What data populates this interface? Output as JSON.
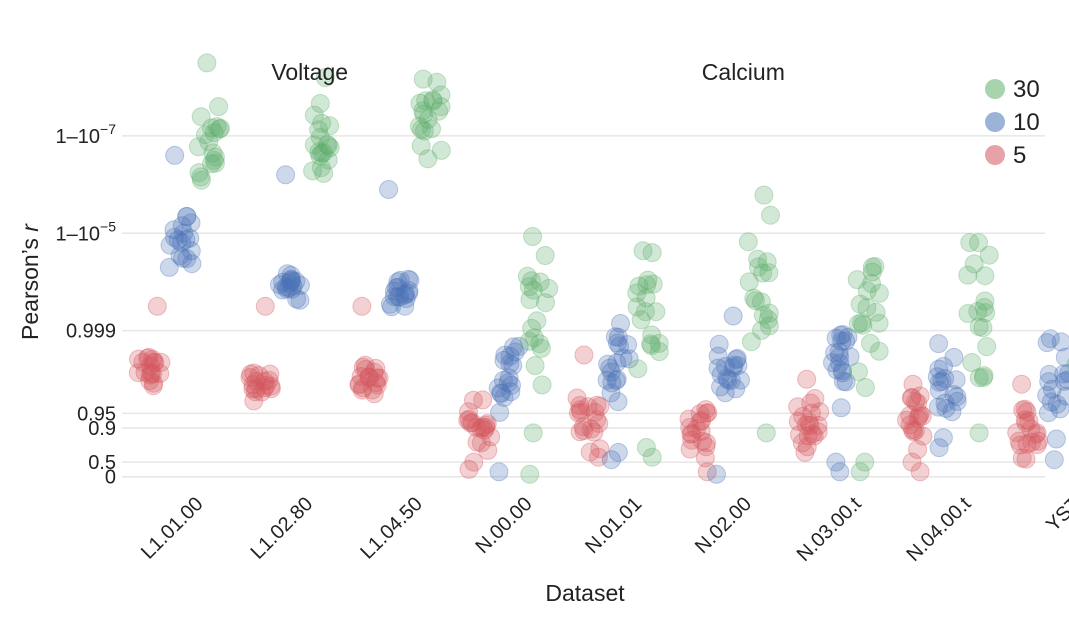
{
  "chart_data": {
    "type": "scatter",
    "subtype": "jittered strip plot",
    "xlabel": "Dataset",
    "ylabel": "Pearson's r",
    "ylabel_prefix": "Pearson’s ",
    "ylabel_italic": "r",
    "y_scale": "transformed (log of 1 - r)",
    "y_ticks": [
      {
        "label_base": "0",
        "label_sup": ""
      },
      {
        "label_base": "0.5",
        "label_sup": ""
      },
      {
        "label_base": "0.9",
        "label_sup": ""
      },
      {
        "label_base": "0.95",
        "label_sup": ""
      },
      {
        "label_base": "0.999",
        "label_sup": ""
      },
      {
        "label_base": "1–10",
        "label_sup": "−5"
      },
      {
        "label_base": "1–10",
        "label_sup": "−7"
      }
    ],
    "y_tick_positions_units": [
      0,
      0.3,
      1.0,
      1.3,
      3.0,
      5.0,
      7.0
    ],
    "ylim_units": [
      -0.15,
      8.6
    ],
    "groups": [
      {
        "label": "Voltage",
        "from": "L1.01.00",
        "to": "L1.04.50"
      },
      {
        "label": "Calcium",
        "from": "N.00.00",
        "to": "YST"
      }
    ],
    "legend": {
      "title": "",
      "position": "top-right",
      "entries": [
        {
          "label": "30",
          "color": "#5fae6a"
        },
        {
          "label": "10",
          "color": "#4b74b8"
        },
        {
          "label": "5",
          "color": "#d4555e"
        }
      ]
    },
    "categories": [
      "L1.01.00",
      "L1.02.80",
      "L1.04.50",
      "N.00.00",
      "N.01.01",
      "N.02.00",
      "N.03.00.t",
      "N.04.00.t",
      "YST"
    ],
    "series": [
      {
        "name": "5",
        "color": "#d4555e",
        "points_per_category": 18,
        "center_units": [
          2.2,
          1.9,
          1.95,
          1.0,
          1.25,
          1.0,
          0.95,
          1.1,
          1.05
        ],
        "spread_units": [
          0.45,
          0.35,
          0.4,
          0.55,
          0.7,
          0.65,
          0.7,
          0.7,
          0.7
        ],
        "outliers_units": [
          [
            3.5
          ],
          [
            3.5
          ],
          [
            3.5
          ],
          [
            0.15,
            0.3
          ],
          [
            2.5,
            0.4
          ],
          [
            0.1
          ],
          [
            2.0,
            0.5
          ],
          [
            1.9,
            0.1
          ],
          [
            1.9
          ]
        ]
      },
      {
        "name": "10",
        "color": "#4b74b8",
        "points_per_category": 18,
        "center_units": [
          4.9,
          3.9,
          3.8,
          2.1,
          2.4,
          2.2,
          2.3,
          1.9,
          1.9
        ],
        "spread_units": [
          0.6,
          0.4,
          0.4,
          0.8,
          0.9,
          1.0,
          1.0,
          1.1,
          1.1
        ],
        "outliers_units": [
          [
            6.6
          ],
          [
            6.2
          ],
          [
            5.9
          ],
          [
            0.1
          ],
          [
            0.5,
            0.35
          ],
          [
            0.05
          ],
          [
            0.1,
            0.3
          ],
          [
            0.8
          ],
          [
            0.35
          ]
        ]
      },
      {
        "name": "30",
        "color": "#5fae6a",
        "points_per_category": 18,
        "center_units": [
          6.8,
          6.9,
          7.4,
          3.4,
          3.4,
          3.9,
          3.4,
          3.2,
          2.9
        ],
        "spread_units": [
          1.0,
          0.8,
          1.0,
          1.8,
          1.5,
          2.0,
          1.9,
          2.0,
          1.8
        ],
        "outliers_units": [
          [
            8.5
          ],
          [
            8.2
          ],
          [
            7.1
          ],
          [
            0.05,
            0.9
          ],
          [
            0.4,
            0.6
          ],
          [
            0.9
          ],
          [
            0.1,
            0.3
          ],
          [
            0.9
          ],
          [
            4.5,
            0.3
          ]
        ]
      }
    ]
  }
}
